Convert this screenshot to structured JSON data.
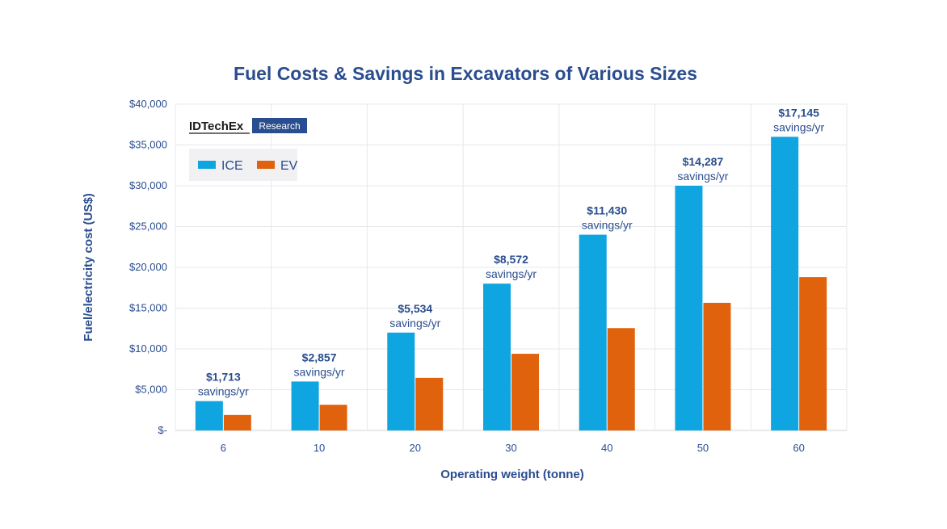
{
  "chart_data": {
    "type": "bar",
    "title": "Fuel Costs & Savings in Excavators of Various Sizes",
    "xlabel": "Operating weight (tonne)",
    "ylabel": "Fuel/electricity cost (US$)",
    "categories": [
      "6",
      "10",
      "20",
      "30",
      "40",
      "50",
      "60"
    ],
    "series": [
      {
        "name": "ICE",
        "color": "#0ea5e0",
        "values": [
          3600,
          6000,
          12000,
          18000,
          24000,
          30000,
          36000
        ]
      },
      {
        "name": "EV",
        "color": "#e0620c",
        "values": [
          1900,
          3150,
          6450,
          9400,
          12550,
          15650,
          18800
        ]
      }
    ],
    "ylim": [
      0,
      40000
    ],
    "yticks": [
      0,
      5000,
      10000,
      15000,
      20000,
      25000,
      30000,
      35000,
      40000
    ],
    "ytick_labels": [
      "$-",
      "$5,000",
      "$10,000",
      "$15,000",
      "$20,000",
      "$25,000",
      "$30,000",
      "$35,000",
      "$40,000"
    ],
    "annotations": [
      {
        "value": "$1,713",
        "unit": "savings/yr"
      },
      {
        "value": "$2,857",
        "unit": "savings/yr"
      },
      {
        "value": "$5,534",
        "unit": "savings/yr"
      },
      {
        "value": "$8,572",
        "unit": "savings/yr"
      },
      {
        "value": "$11,430",
        "unit": "savings/yr"
      },
      {
        "value": "$14,287",
        "unit": "savings/yr"
      },
      {
        "value": "$17,145",
        "unit": "savings/yr"
      }
    ],
    "grid": true,
    "legend_position": "top-left"
  },
  "brand": {
    "name": "IDTechEx",
    "tag": "Research",
    "tag_color": "#2a4d8f"
  }
}
